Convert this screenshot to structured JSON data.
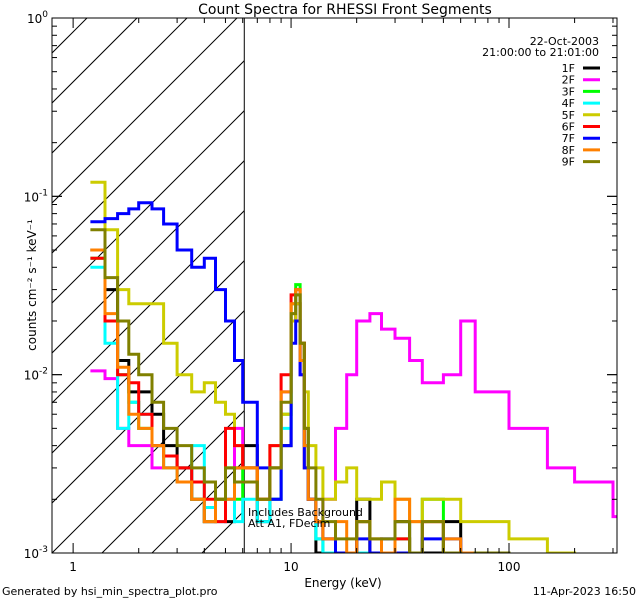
{
  "chart_data": {
    "type": "line",
    "title": "Count Spectra for RHESSI Front Segments",
    "xlabel": "Energy (keV)",
    "ylabel": "counts cm⁻² s⁻¹ keV⁻¹",
    "xscale": "log",
    "yscale": "log",
    "xlim": [
      0.8,
      313
    ],
    "ylim": [
      0.001,
      1
    ],
    "xticks": [
      {
        "v": 1,
        "label": "1"
      },
      {
        "v": 10,
        "label": "10"
      },
      {
        "v": 100,
        "label": "100"
      }
    ],
    "yticks": [
      {
        "v": 1,
        "base": "10",
        "exp": "0"
      },
      {
        "v": 0.1,
        "base": "10",
        "exp": "-1"
      },
      {
        "v": 0.01,
        "base": "10",
        "exp": "-2"
      },
      {
        "v": 0.001,
        "base": "10",
        "exp": "-3"
      }
    ],
    "hatched_region_keV": [
      0.8,
      6.1
    ],
    "date": "22-Oct-2003",
    "time_range": "21:00:00 to 21:01:00",
    "annotation_line1": "Includes Background",
    "annotation_line2": "Att A1, FDecim",
    "legend_position": "top-right",
    "energy_bins": [
      1.2,
      1.4,
      1.6,
      1.8,
      2.0,
      2.3,
      2.6,
      3.0,
      3.5,
      4.0,
      4.5,
      5.0,
      5.5,
      6.0,
      7,
      8,
      9,
      10,
      10.5,
      11,
      11.5,
      12,
      13,
      14,
      16,
      18,
      20,
      23,
      26,
      30,
      35,
      40,
      50,
      60,
      70,
      100,
      150,
      200,
      300
    ],
    "series": [
      {
        "name": "1F",
        "color": "#000000",
        "values": [
          0.05,
          0.03,
          0.012,
          0.008,
          0.008,
          0.006,
          0.004,
          0.003,
          0.002,
          0.0015,
          0.002,
          0.0015,
          0.003,
          0.004,
          0.0015,
          0.002,
          0.004,
          0.02,
          0.025,
          0.015,
          0.005,
          0.002,
          0.001,
          0.0009,
          0.001,
          0.0009,
          0.002,
          0.0009,
          0.0009,
          0.0015,
          0.0009,
          0.001,
          0.0015,
          0.0009,
          0.001,
          0.0009,
          0.0009,
          0.0009,
          0.0009
        ]
      },
      {
        "name": "2F",
        "color": "#ff00ff",
        "values": [
          0.0105,
          0.0095,
          0.005,
          0.004,
          0.004,
          0.003,
          0.003,
          0.0025,
          0.002,
          0.0015,
          0.0015,
          0.002,
          0.005,
          0.003,
          0.002,
          0.003,
          0.008,
          0.02,
          0.025,
          0.01,
          0.004,
          0.002,
          0.0015,
          0.002,
          0.005,
          0.01,
          0.02,
          0.022,
          0.018,
          0.016,
          0.012,
          0.009,
          0.01,
          0.02,
          0.008,
          0.005,
          0.003,
          0.0025,
          0.0016
        ]
      },
      {
        "name": "3F",
        "color": "#00ff00",
        "values": [
          0.045,
          0.02,
          0.01,
          0.007,
          0.005,
          0.004,
          0.003,
          0.0025,
          0.002,
          0.0015,
          0.002,
          0.003,
          0.002,
          0.003,
          0.002,
          0.003,
          0.006,
          0.025,
          0.032,
          0.015,
          0.004,
          0.002,
          0.0012,
          0.001,
          0.0009,
          0.001,
          0.0015,
          0.001,
          0.0009,
          0.0012,
          0.0009,
          0.002,
          0.0009,
          0.0009,
          0.001,
          0.0009,
          0.0009,
          0.0009,
          0.0009
        ]
      },
      {
        "name": "4F",
        "color": "#00ffff",
        "values": [
          0.04,
          0.015,
          0.005,
          0.007,
          0.006,
          0.004,
          0.003,
          0.0025,
          0.004,
          0.0018,
          0.0015,
          0.002,
          0.0015,
          0.002,
          0.0015,
          0.002,
          0.005,
          0.022,
          0.028,
          0.012,
          0.004,
          0.002,
          0.0012,
          0.001,
          0.0009,
          0.0009,
          0.001,
          0.0009,
          0.0009,
          0.001,
          0.0009,
          0.0009,
          0.0009,
          0.0009,
          0.0009,
          0.0009,
          0.0009,
          0.0009,
          0.0009
        ]
      },
      {
        "name": "5F",
        "color": "#cccc00",
        "values": [
          0.12,
          0.065,
          0.03,
          0.025,
          0.025,
          0.025,
          0.015,
          0.01,
          0.008,
          0.009,
          0.007,
          0.006,
          0.004,
          0.003,
          0.002,
          0.004,
          0.006,
          0.02,
          0.025,
          0.015,
          0.008,
          0.004,
          0.003,
          0.002,
          0.0025,
          0.003,
          0.002,
          0.002,
          0.0025,
          0.002,
          0.0015,
          0.002,
          0.002,
          0.0015,
          0.0015,
          0.0012,
          0.001,
          0.0009,
          0.0009
        ]
      },
      {
        "name": "6F",
        "color": "#ff0000",
        "values": [
          0.045,
          0.02,
          0.01,
          0.009,
          0.006,
          0.004,
          0.0035,
          0.003,
          0.0025,
          0.002,
          0.0015,
          0.005,
          0.004,
          0.003,
          0.002,
          0.004,
          0.01,
          0.028,
          0.03,
          0.015,
          0.003,
          0.002,
          0.0015,
          0.0012,
          0.001,
          0.001,
          0.0015,
          0.001,
          0.0009,
          0.0012,
          0.001,
          0.0015,
          0.001,
          0.0009,
          0.001,
          0.0009,
          0.0009,
          0.0009,
          0.0009
        ]
      },
      {
        "name": "7F",
        "color": "#0000ff",
        "values": [
          0.072,
          0.075,
          0.08,
          0.085,
          0.092,
          0.085,
          0.07,
          0.05,
          0.04,
          0.045,
          0.03,
          0.02,
          0.012,
          0.007,
          0.003,
          0.002,
          0.004,
          0.015,
          0.02,
          0.01,
          0.003,
          0.002,
          0.0015,
          0.0012,
          0.001,
          0.0009,
          0.0012,
          0.001,
          0.0012,
          0.001,
          0.0009,
          0.0012,
          0.0012,
          0.0009,
          0.0009,
          0.0009,
          0.0009,
          0.0009,
          0.0009
        ]
      },
      {
        "name": "8F",
        "color": "#ff8000",
        "values": [
          0.05,
          0.022,
          0.011,
          0.006,
          0.005,
          0.004,
          0.003,
          0.0025,
          0.002,
          0.0015,
          0.002,
          0.002,
          0.003,
          0.003,
          0.002,
          0.003,
          0.008,
          0.025,
          0.03,
          0.012,
          0.004,
          0.002,
          0.0015,
          0.0012,
          0.0015,
          0.001,
          0.0015,
          0.0012,
          0.001,
          0.002,
          0.0015,
          0.0015,
          0.0012,
          0.001,
          0.0009,
          0.0009,
          0.0009,
          0.0009,
          0.0009
        ]
      },
      {
        "name": "9F",
        "color": "#808000",
        "values": [
          0.065,
          0.035,
          0.02,
          0.013,
          0.01,
          0.007,
          0.005,
          0.004,
          0.003,
          0.0025,
          0.002,
          0.003,
          0.0025,
          0.0025,
          0.002,
          0.003,
          0.007,
          0.022,
          0.028,
          0.015,
          0.005,
          0.003,
          0.002,
          0.0015,
          0.0012,
          0.0012,
          0.0015,
          0.0012,
          0.0012,
          0.0015,
          0.001,
          0.0015,
          0.001,
          0.0009,
          0.001,
          0.0009,
          0.0009,
          0.0009,
          0.0009
        ]
      }
    ]
  },
  "footer": {
    "generated_by": "Generated by hsi_min_spectra_plot.pro",
    "timestamp": "11-Apr-2023 16:50"
  }
}
